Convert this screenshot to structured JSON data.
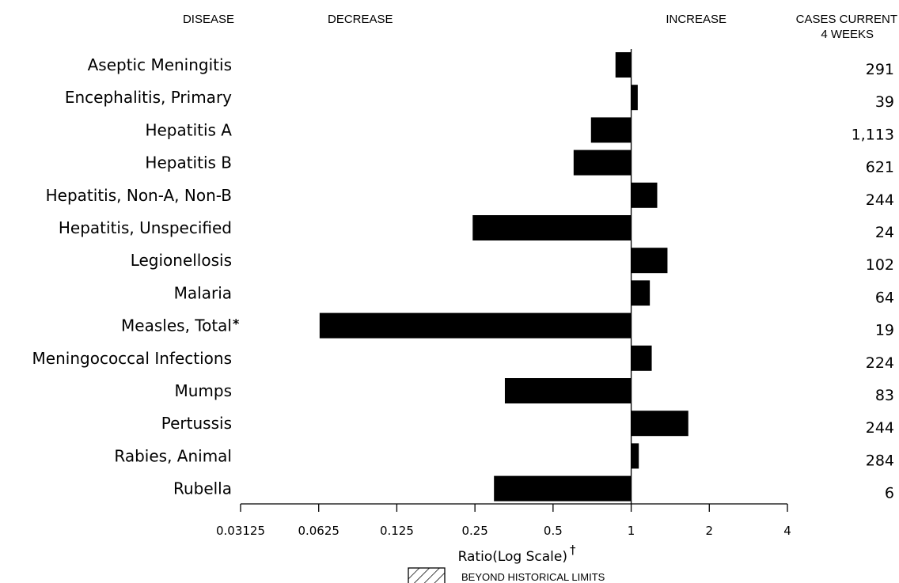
{
  "headers": {
    "disease": "DISEASE",
    "decrease": "DECREASE",
    "increase": "INCREASE",
    "cases_line1": "CASES CURRENT",
    "cases_line2": "4 WEEKS"
  },
  "chart_data": {
    "type": "bar",
    "orientation": "horizontal",
    "xscale": "log2",
    "xlim": [
      0.03125,
      4
    ],
    "baseline": 1,
    "xlabel": "Ratio(Log Scale)",
    "xlabel_mark": "†",
    "xticks": [
      "0.03125",
      "0.0625",
      "0.125",
      "0.25",
      "0.5",
      "1",
      "2",
      "4"
    ],
    "categories": [
      "Aseptic Meningitis",
      "Encephalitis, Primary",
      "Hepatitis A",
      "Hepatitis B",
      "Hepatitis, Non-A, Non-B",
      "Hepatitis, Unspecified",
      "Legionellosis",
      "Malaria",
      "Measles, Total",
      "Meningococcal Infections",
      "Mumps",
      "Pertussis",
      "Rabies, Animal",
      "Rubella"
    ],
    "category_marks": [
      "",
      "",
      "",
      "",
      "",
      "",
      "",
      "",
      "*",
      "",
      "",
      "",
      "",
      ""
    ],
    "values": [
      0.87,
      1.06,
      0.7,
      0.6,
      1.26,
      0.245,
      1.38,
      1.18,
      0.063,
      1.2,
      0.326,
      1.66,
      1.07,
      0.296
    ],
    "cases_current_4_weeks": [
      "291",
      "39",
      "1,113",
      "621",
      "244",
      "24",
      "102",
      "64",
      "19",
      "224",
      "83",
      "244",
      "284",
      "6"
    ],
    "legend": [
      {
        "label": "BEYOND HISTORICAL LIMITS",
        "pattern": "hatched"
      }
    ],
    "bar_color": "#000000"
  }
}
